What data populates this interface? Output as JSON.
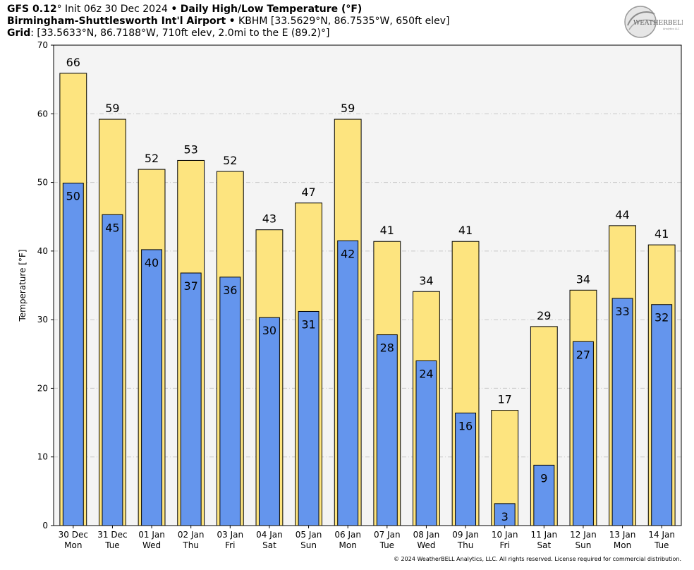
{
  "header": {
    "model": "GFS 0.12",
    "model_deg": "°",
    "init_text": "Init 06z 30 Dec 2024",
    "bullet": "•",
    "product": "Daily High/Low Temperature (°F)",
    "station_name": "Birmingham-Shuttlesworth Int'l Airport",
    "station_info": "KBHM [33.5629°N, 86.7535°W, 650ft elev]",
    "grid_label": "Grid",
    "grid_info": ": [33.5633°N, 86.7188°W, 710ft elev, 2.0mi to the E (89.2)°]"
  },
  "logo": {
    "text_main": "WEATHERBELL",
    "text_sub": "Analytics LLC"
  },
  "footer": {
    "text": "© 2024 WeatherBELL Analytics, LLC. All rights reserved. License required for commercial distribution."
  },
  "colors": {
    "high_fill": "#fde47f",
    "low_fill": "#6495ed",
    "plot_bg": "#f4f4f4",
    "grid": "#c8c8c8"
  },
  "chart_data": {
    "type": "bar",
    "title": "Daily High/Low Temperature (°F)",
    "ylabel": "Temperature [°F]",
    "ylim": [
      0,
      70
    ],
    "yticks": [
      0,
      10,
      20,
      30,
      40,
      50,
      60,
      70
    ],
    "grid": true,
    "categories": [
      {
        "date": "30 Dec",
        "day": "Mon"
      },
      {
        "date": "31 Dec",
        "day": "Tue"
      },
      {
        "date": "01 Jan",
        "day": "Wed"
      },
      {
        "date": "02 Jan",
        "day": "Thu"
      },
      {
        "date": "03 Jan",
        "day": "Fri"
      },
      {
        "date": "04 Jan",
        "day": "Sat"
      },
      {
        "date": "05 Jan",
        "day": "Sun"
      },
      {
        "date": "06 Jan",
        "day": "Mon"
      },
      {
        "date": "07 Jan",
        "day": "Tue"
      },
      {
        "date": "08 Jan",
        "day": "Wed"
      },
      {
        "date": "09 Jan",
        "day": "Thu"
      },
      {
        "date": "10 Jan",
        "day": "Fri"
      },
      {
        "date": "11 Jan",
        "day": "Sat"
      },
      {
        "date": "12 Jan",
        "day": "Sun"
      },
      {
        "date": "13 Jan",
        "day": "Mon"
      },
      {
        "date": "14 Jan",
        "day": "Tue"
      }
    ],
    "series": [
      {
        "values": [
          65.9,
          59.2,
          51.9,
          53.2,
          51.6,
          43.1,
          47.0,
          59.2,
          41.4,
          34.1,
          41.4,
          16.8,
          29.0,
          34.3,
          43.7,
          40.9
        ],
        "labels": [
          "66",
          "59",
          "52",
          "53",
          "52",
          "43",
          "47",
          "59",
          "41",
          "34",
          "41",
          "17",
          "29",
          "34",
          "44",
          "41"
        ]
      },
      {
        "values": [
          49.9,
          45.3,
          40.2,
          36.8,
          36.2,
          30.3,
          31.2,
          41.5,
          27.8,
          24.0,
          16.4,
          3.2,
          8.8,
          26.8,
          33.1,
          32.2
        ],
        "labels": [
          "50",
          "45",
          "40",
          "37",
          "36",
          "30",
          "31",
          "42",
          "28",
          "24",
          "16",
          "3",
          "9",
          "27",
          "33",
          "32"
        ]
      }
    ]
  }
}
